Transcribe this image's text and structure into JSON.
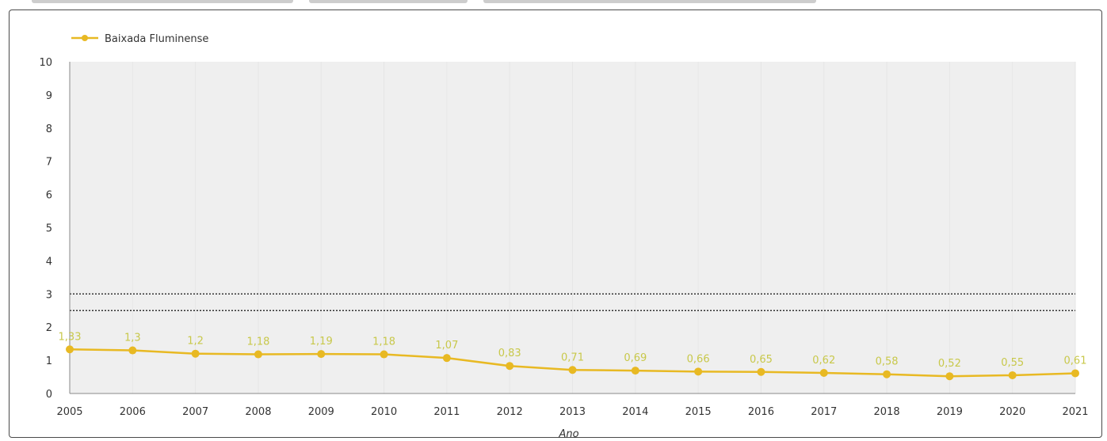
{
  "chart_data": {
    "type": "line",
    "x": [
      "2005",
      "2006",
      "2007",
      "2008",
      "2009",
      "2010",
      "2011",
      "2012",
      "2013",
      "2014",
      "2015",
      "2016",
      "2017",
      "2018",
      "2019",
      "2020",
      "2021"
    ],
    "series": [
      {
        "name": "Baixada Fluminense",
        "values": [
          1.33,
          1.3,
          1.2,
          1.18,
          1.19,
          1.18,
          1.07,
          0.83,
          0.71,
          0.69,
          0.66,
          0.65,
          0.62,
          0.58,
          0.52,
          0.55,
          0.61
        ],
        "labels": [
          "1,33",
          "1,3",
          "1,2",
          "1,18",
          "1,19",
          "1,18",
          "1,07",
          "0,83",
          "0,71",
          "0,69",
          "0,66",
          "0,65",
          "0,62",
          "0,58",
          "0,52",
          "0,55",
          "0,61"
        ]
      }
    ],
    "xlabel": "Ano",
    "ylabel": "",
    "ylim": [
      0,
      10
    ],
    "yticks": [
      "0",
      "1",
      "2",
      "3",
      "4",
      "5",
      "6",
      "7",
      "8",
      "9",
      "10"
    ],
    "reference_lines": [
      {
        "value": 3,
        "style": "dotted"
      },
      {
        "value": 2.5,
        "style": "dotted"
      }
    ],
    "grid": true,
    "legend": "top-left",
    "colors": {
      "series": "#e8b923",
      "data_label": "#c8c84a",
      "plot_background": "#efefef",
      "reference_line": "#333333"
    }
  }
}
